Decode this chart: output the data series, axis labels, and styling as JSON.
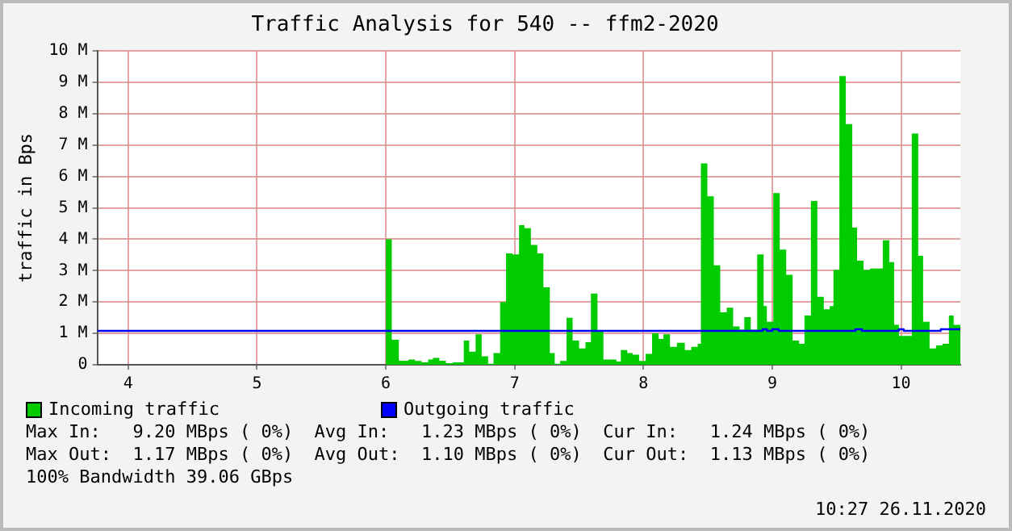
{
  "chart_data": {
    "type": "step",
    "title": "Traffic Analysis for 540 -- ffm2-2020",
    "ylabel": "traffic in Bps",
    "xlim": [
      3.76,
      10.46
    ],
    "xticks": [
      4,
      5,
      6,
      7,
      8,
      9,
      10
    ],
    "ylim": [
      0,
      10
    ],
    "yticks": [
      {
        "value": 0,
        "label": "0"
      },
      {
        "value": 1,
        "label": "1 M"
      },
      {
        "value": 2,
        "label": "2 M"
      },
      {
        "value": 3,
        "label": "3 M"
      },
      {
        "value": 4,
        "label": "4 M"
      },
      {
        "value": 5,
        "label": "5 M"
      },
      {
        "value": 6,
        "label": "6 M"
      },
      {
        "value": 7,
        "label": "7 M"
      },
      {
        "value": 8,
        "label": "8 M"
      },
      {
        "value": 9,
        "label": "9 M"
      },
      {
        "value": 10,
        "label": "10 M"
      }
    ],
    "grid": true,
    "legend": "bottom",
    "series": [
      {
        "name": "Incoming traffic",
        "type": "area",
        "color": "#00cc00",
        "x": [
          6.0,
          6.046,
          6.101,
          6.176,
          6.227,
          6.277,
          6.328,
          6.366,
          6.416,
          6.466,
          6.521,
          6.605,
          6.647,
          6.697,
          6.744,
          6.794,
          6.836,
          6.887,
          6.933,
          6.983,
          7.034,
          7.076,
          7.126,
          7.176,
          7.223,
          7.273,
          7.311,
          7.353,
          7.403,
          7.45,
          7.5,
          7.55,
          7.592,
          7.643,
          7.689,
          7.739,
          7.79,
          7.824,
          7.874,
          7.916,
          7.966,
          8.017,
          8.067,
          8.118,
          8.155,
          8.206,
          8.26,
          8.321,
          8.371,
          8.421,
          8.446,
          8.496,
          8.546,
          8.596,
          8.646,
          8.696,
          8.746,
          8.783,
          8.833,
          8.883,
          8.933,
          8.958,
          9.008,
          9.058,
          9.108,
          9.158,
          9.208,
          9.25,
          9.3,
          9.35,
          9.4,
          9.446,
          9.475,
          9.521,
          9.571,
          9.621,
          9.658,
          9.708,
          9.758,
          9.858,
          9.908,
          9.946,
          9.983,
          10.083,
          10.133,
          10.171,
          10.221,
          10.271,
          10.321,
          10.371,
          10.408,
          10.46
        ],
        "values": [
          4.0,
          0.8,
          0.13,
          0.17,
          0.12,
          0.08,
          0.17,
          0.22,
          0.13,
          0.05,
          0.08,
          0.77,
          0.42,
          0.97,
          0.27,
          0.03,
          0.37,
          2.0,
          3.55,
          3.52,
          4.45,
          4.35,
          3.82,
          3.55,
          2.47,
          0.37,
          0.03,
          0.12,
          1.5,
          0.77,
          0.52,
          0.72,
          2.27,
          1.1,
          0.17,
          0.17,
          0.1,
          0.47,
          0.37,
          0.32,
          0.12,
          0.35,
          1.0,
          0.82,
          0.97,
          0.57,
          0.7,
          0.47,
          0.57,
          0.67,
          6.42,
          5.37,
          3.17,
          1.67,
          1.82,
          1.22,
          1.12,
          1.52,
          1.12,
          3.52,
          1.87,
          1.37,
          5.47,
          3.67,
          2.87,
          0.77,
          0.67,
          1.57,
          5.22,
          2.17,
          1.77,
          1.87,
          3.02,
          9.2,
          7.67,
          4.37,
          3.32,
          3.02,
          3.07,
          3.97,
          3.27,
          1.27,
          0.92,
          7.37,
          3.47,
          1.37,
          0.52,
          0.62,
          0.67,
          1.57,
          1.27,
          1.27
        ]
      },
      {
        "name": "Outgoing traffic",
        "color": "#0000ff",
        "x": [
          3.76,
          8.925,
          8.958,
          9.0,
          9.05,
          9.646,
          9.696,
          9.983,
          10.02,
          10.308,
          10.46
        ],
        "values": [
          1.08,
          1.13,
          1.08,
          1.13,
          1.08,
          1.13,
          1.08,
          1.13,
          1.08,
          1.13,
          1.13
        ]
      }
    ],
    "annotations": [
      "Max In:   9.20 MBps ( 0%)  Avg In:   1.23 MBps ( 0%)  Cur In:   1.24 MBps ( 0%)",
      "Max Out:  1.17 MBps ( 0%)  Avg Out:  1.10 MBps ( 0%)  Cur Out:  1.13 MBps ( 0%)",
      "100% Bandwidth 39.06 GBps",
      "10:27 26.11.2020"
    ]
  }
}
